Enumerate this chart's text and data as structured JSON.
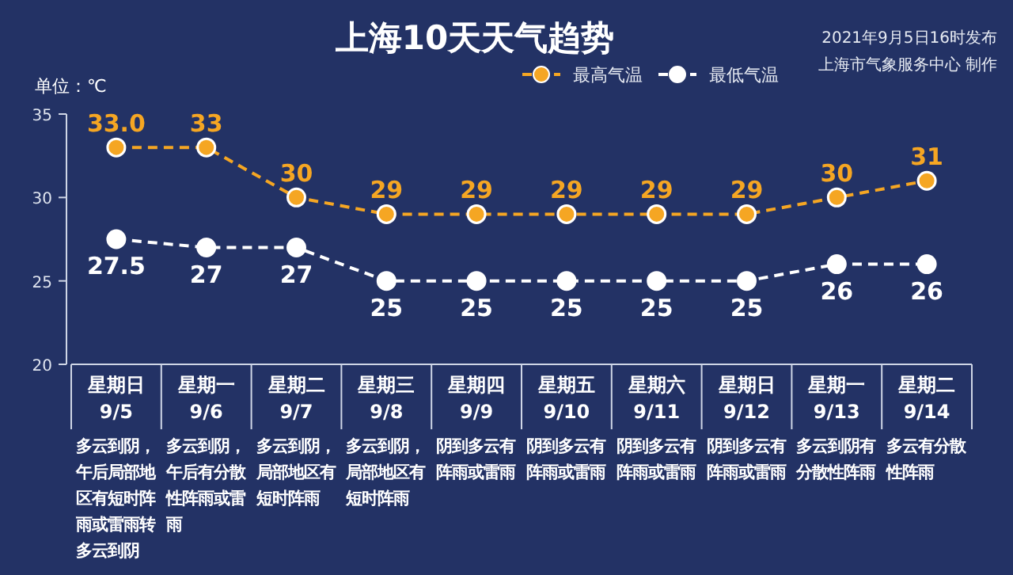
{
  "chart_data": {
    "type": "line",
    "title": "上海10天天气趋势",
    "ylabel": "单位：℃",
    "categories": [
      "星期日\n9/5",
      "星期一\n9/6",
      "星期二\n9/7",
      "星期三\n9/8",
      "星期四\n9/9",
      "星期五\n9/10",
      "星期六\n9/11",
      "星期日\n9/12",
      "星期一\n9/13",
      "星期二\n9/14"
    ],
    "series": [
      {
        "name": "最高气温",
        "color": "#f5a623",
        "values": [
          33.0,
          33,
          30,
          29,
          29,
          29,
          29,
          29,
          30,
          31
        ],
        "value_labels": [
          "33.0",
          "33",
          "30",
          "29",
          "29",
          "29",
          "29",
          "29",
          "30",
          "31"
        ]
      },
      {
        "name": "最低气温",
        "color": "#ffffff",
        "values": [
          27.5,
          27,
          27,
          25,
          25,
          25,
          25,
          25,
          26,
          26
        ],
        "value_labels": [
          "27.5",
          "27",
          "27",
          "25",
          "25",
          "25",
          "25",
          "25",
          "26",
          "26"
        ]
      }
    ],
    "ylim": [
      20,
      35
    ],
    "yticks": [
      20,
      25,
      30,
      35
    ],
    "grid": false,
    "legend": "top right",
    "marker": "circle",
    "line_style": "dashed",
    "annotations": [
      "多云到阴，午后局部地区有短时阵雨或雷雨转多云到阴",
      "多云到阴，午后有分散性阵雨或雷雨",
      "多云到阴，局部地区有短时阵雨",
      "多云到阴，局部地区有短时阵雨",
      "阴到多云有阵雨或雷雨",
      "阴到多云有阵雨或雷雨",
      "阴到多云有阵雨或雷雨",
      "阴到多云有阵雨或雷雨",
      "多云到阴有分散性阵雨",
      "多云有分散性阵雨",
      "2021年9月5日16时发布",
      "上海市气象服务中心 制作"
    ]
  }
}
